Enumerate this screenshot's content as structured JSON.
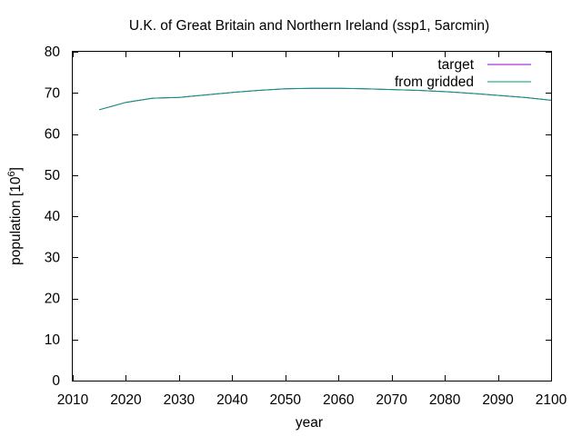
{
  "chart_data": {
    "type": "line",
    "title": "U.K. of Great Britain and Northern Ireland (ssp1, 5arcmin)",
    "xlabel": "year",
    "ylabel": "population [10",
    "ylabel_superscript": "6",
    "ylabel_suffix": "]",
    "xlim": [
      2010,
      2100
    ],
    "ylim": [
      0,
      80
    ],
    "xticks": [
      2010,
      2020,
      2030,
      2040,
      2050,
      2060,
      2070,
      2080,
      2090,
      2100
    ],
    "yticks": [
      0,
      10,
      20,
      30,
      40,
      50,
      60,
      70,
      80
    ],
    "grid": false,
    "legend_position": "top-right",
    "x": [
      2015,
      2020,
      2025,
      2030,
      2035,
      2040,
      2045,
      2050,
      2055,
      2060,
      2065,
      2070,
      2075,
      2080,
      2085,
      2090,
      2095,
      2100
    ],
    "series": [
      {
        "name": "target",
        "color": "#9400d3",
        "values": [
          65.9,
          67.7,
          68.7,
          68.9,
          69.5,
          70.1,
          70.6,
          71.0,
          71.1,
          71.1,
          71.0,
          70.8,
          70.6,
          70.3,
          69.9,
          69.4,
          68.9,
          68.2
        ]
      },
      {
        "name": "from gridded",
        "color": "#009e73",
        "values": [
          65.9,
          67.7,
          68.7,
          68.9,
          69.5,
          70.1,
          70.6,
          71.0,
          71.1,
          71.1,
          71.0,
          70.8,
          70.6,
          70.3,
          69.9,
          69.4,
          68.9,
          68.2
        ]
      }
    ]
  }
}
